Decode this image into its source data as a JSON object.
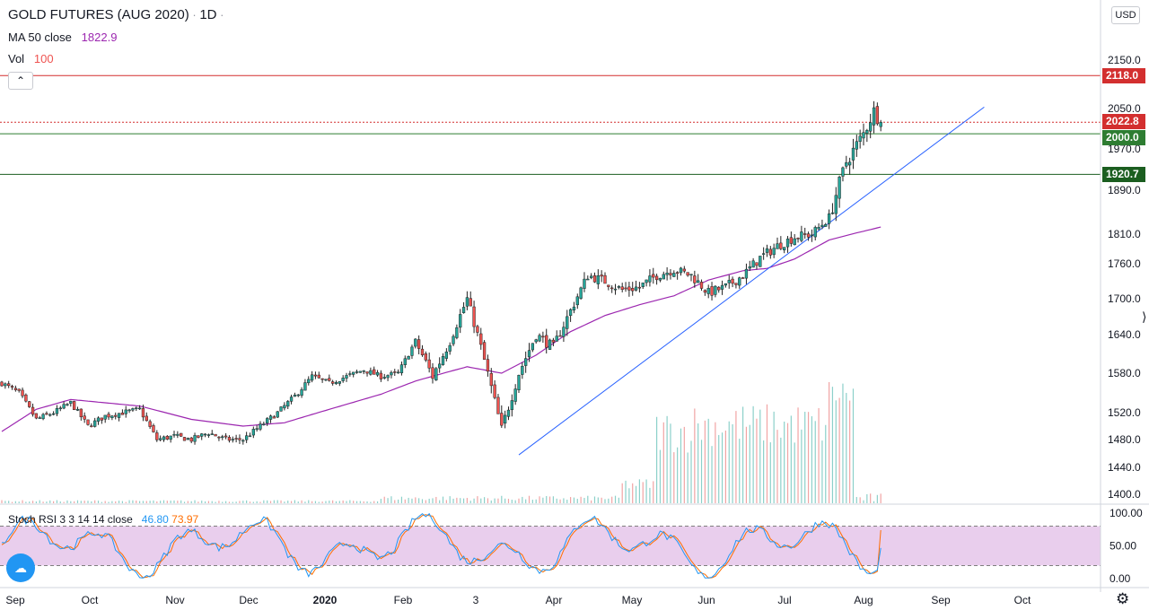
{
  "header": {
    "symbol": "GOLD FUTURES (AUG 2020)",
    "sep1": "·",
    "interval": "1D",
    "sep2": "·",
    "ma_label": "MA 50 close",
    "ma_value": "1822.9",
    "vol_label": "Vol",
    "vol_value": "100",
    "collapse_glyph": "⌃"
  },
  "toolbar": {
    "currency": "USD"
  },
  "oscillator": {
    "label": "Stoch RSI 3 3 14 14 close",
    "k_value": "46.80",
    "d_value": "73.97"
  },
  "icons": {
    "logo": "tradingview-logo-icon",
    "settings": "gear-icon",
    "scale_handle": "resize-handle-icon"
  },
  "logo_glyph": "☁",
  "gear_glyph": "⚙",
  "handle_glyph": "⟩",
  "colors": {
    "up_candle": "#26a69a",
    "down_candle": "#ef5350",
    "ma": "#9c27b0",
    "trend": "#2962ff",
    "resistance": "#d32f2f",
    "support": "#2e7d32",
    "dark_support": "#1b5e20",
    "k_line": "#2196f3",
    "d_line": "#ff6d00",
    "osc_band": "#e1bee7"
  },
  "chart_data": [
    {
      "type": "candlestick",
      "title": "GOLD FUTURES (AUG 2020)",
      "x_ticks": [
        "Sep",
        "Oct",
        "Nov",
        "Dec",
        "2020",
        "Feb",
        "3",
        "Apr",
        "May",
        "Jun",
        "Jul",
        "Aug",
        "Sep",
        "Oct"
      ],
      "y_ticks": [
        "1400.0",
        "1440.0",
        "1480.0",
        "1520.0",
        "1580.0",
        "1640.0",
        "1700.0",
        "1760.0",
        "1810.0",
        "1890.0",
        "1970.0",
        "2050.0",
        "2150.0"
      ],
      "ylim": [
        1395,
        2155
      ],
      "close_anchors": [
        [
          0,
          1565
        ],
        [
          5,
          1550
        ],
        [
          10,
          1510
        ],
        [
          15,
          1520
        ],
        [
          20,
          1535
        ],
        [
          25,
          1500
        ],
        [
          30,
          1515
        ],
        [
          35,
          1520
        ],
        [
          40,
          1525
        ],
        [
          45,
          1480
        ],
        [
          50,
          1485
        ],
        [
          55,
          1480
        ],
        [
          60,
          1490
        ],
        [
          65,
          1480
        ],
        [
          70,
          1480
        ],
        [
          75,
          1500
        ],
        [
          80,
          1520
        ],
        [
          85,
          1545
        ],
        [
          90,
          1575
        ],
        [
          95,
          1565
        ],
        [
          100,
          1575
        ],
        [
          105,
          1585
        ],
        [
          110,
          1575
        ],
        [
          115,
          1580
        ],
        [
          120,
          1630
        ],
        [
          125,
          1575
        ],
        [
          130,
          1630
        ],
        [
          135,
          1700
        ],
        [
          140,
          1600
        ],
        [
          145,
          1495
        ],
        [
          150,
          1580
        ],
        [
          155,
          1640
        ],
        [
          160,
          1620
        ],
        [
          165,
          1680
        ],
        [
          170,
          1740
        ],
        [
          175,
          1730
        ],
        [
          180,
          1715
        ],
        [
          185,
          1720
        ],
        [
          190,
          1740
        ],
        [
          195,
          1750
        ],
        [
          200,
          1740
        ],
        [
          205,
          1710
        ],
        [
          210,
          1720
        ],
        [
          215,
          1740
        ],
        [
          220,
          1770
        ],
        [
          225,
          1790
        ],
        [
          230,
          1805
        ],
        [
          235,
          1810
        ],
        [
          240,
          1840
        ],
        [
          245,
          1945
        ],
        [
          250,
          2000
        ],
        [
          253,
          2045
        ],
        [
          255,
          2022.8
        ]
      ],
      "ma_anchors": [
        [
          0,
          1492
        ],
        [
          10,
          1525
        ],
        [
          20,
          1540
        ],
        [
          40,
          1530
        ],
        [
          55,
          1510
        ],
        [
          70,
          1500
        ],
        [
          82,
          1505
        ],
        [
          95,
          1525
        ],
        [
          110,
          1548
        ],
        [
          120,
          1568
        ],
        [
          135,
          1590
        ],
        [
          145,
          1580
        ],
        [
          155,
          1608
        ],
        [
          165,
          1645
        ],
        [
          175,
          1672
        ],
        [
          185,
          1690
        ],
        [
          195,
          1705
        ],
        [
          205,
          1732
        ],
        [
          215,
          1748
        ],
        [
          222,
          1752
        ],
        [
          230,
          1768
        ],
        [
          240,
          1800
        ],
        [
          255,
          1822.9
        ]
      ],
      "volume_pattern": "low until April, moderate through June, spikes of ~100 in July",
      "volume_value": 100,
      "trend_line": [
        [
          150,
          1458
        ],
        [
          285,
          2053
        ]
      ],
      "horizontal_levels": [
        {
          "value": 2118.0,
          "label": "2118.0",
          "style": "solid",
          "color": "#d32f2f"
        },
        {
          "value": 2022.8,
          "label": "2022.8",
          "style": "dotted",
          "color": "#d32f2f"
        },
        {
          "value": 2000.0,
          "label": "2000.0",
          "style": "solid",
          "color": "#2e7d32"
        },
        {
          "value": 1920.7,
          "label": "1920.7",
          "style": "solid",
          "color": "#1b5e20"
        }
      ],
      "last_close": 2022.8
    },
    {
      "type": "line",
      "title": "Stoch RSI 3 3 14 14 close",
      "y_ticks": [
        "0.00",
        "50.00",
        "100.00"
      ],
      "ylim": [
        0,
        100
      ],
      "bands": [
        20,
        80
      ],
      "series": [
        {
          "name": "K",
          "last": 46.8
        },
        {
          "name": "D",
          "last": 73.97
        }
      ]
    }
  ]
}
